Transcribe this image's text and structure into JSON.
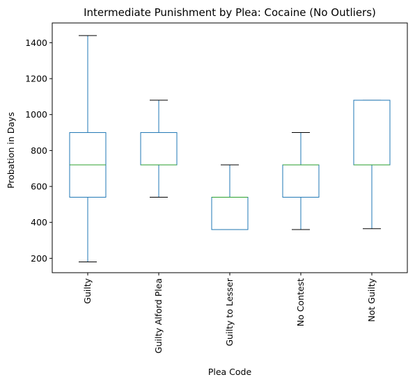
{
  "chart_data": {
    "type": "box",
    "title": "Intermediate Punishment by Plea: Cocaine (No Outliers)",
    "xlabel": "Plea Code",
    "ylabel": "Probation in Days",
    "ylim": [
      120,
      1510
    ],
    "yticks": [
      200,
      400,
      600,
      800,
      1000,
      1200,
      1400
    ],
    "categories": [
      "Guilty",
      "Guilty Alford Plea",
      "Guilty to Lesser",
      "No Contest",
      "Not Guilty"
    ],
    "boxes": [
      {
        "category": "Guilty",
        "whisker_low": 180,
        "q1": 540,
        "median": 720,
        "q3": 900,
        "whisker_high": 1440
      },
      {
        "category": "Guilty Alford Plea",
        "whisker_low": 540,
        "q1": 720,
        "median": 720,
        "q3": 900,
        "whisker_high": 1080
      },
      {
        "category": "Guilty to Lesser",
        "whisker_low": 360,
        "q1": 360,
        "median": 540,
        "q3": 540,
        "whisker_high": 720
      },
      {
        "category": "No Contest",
        "whisker_low": 360,
        "q1": 540,
        "median": 720,
        "q3": 720,
        "whisker_high": 900
      },
      {
        "category": "Not Guilty",
        "whisker_low": 365,
        "q1": 720,
        "median": 720,
        "q3": 1080,
        "whisker_high": 1080
      }
    ],
    "grid": false,
    "legend": "none",
    "colors": {
      "box": "#1f77b4",
      "median": "#2ca02c",
      "cap": "#000000",
      "axes": "#000000"
    }
  }
}
